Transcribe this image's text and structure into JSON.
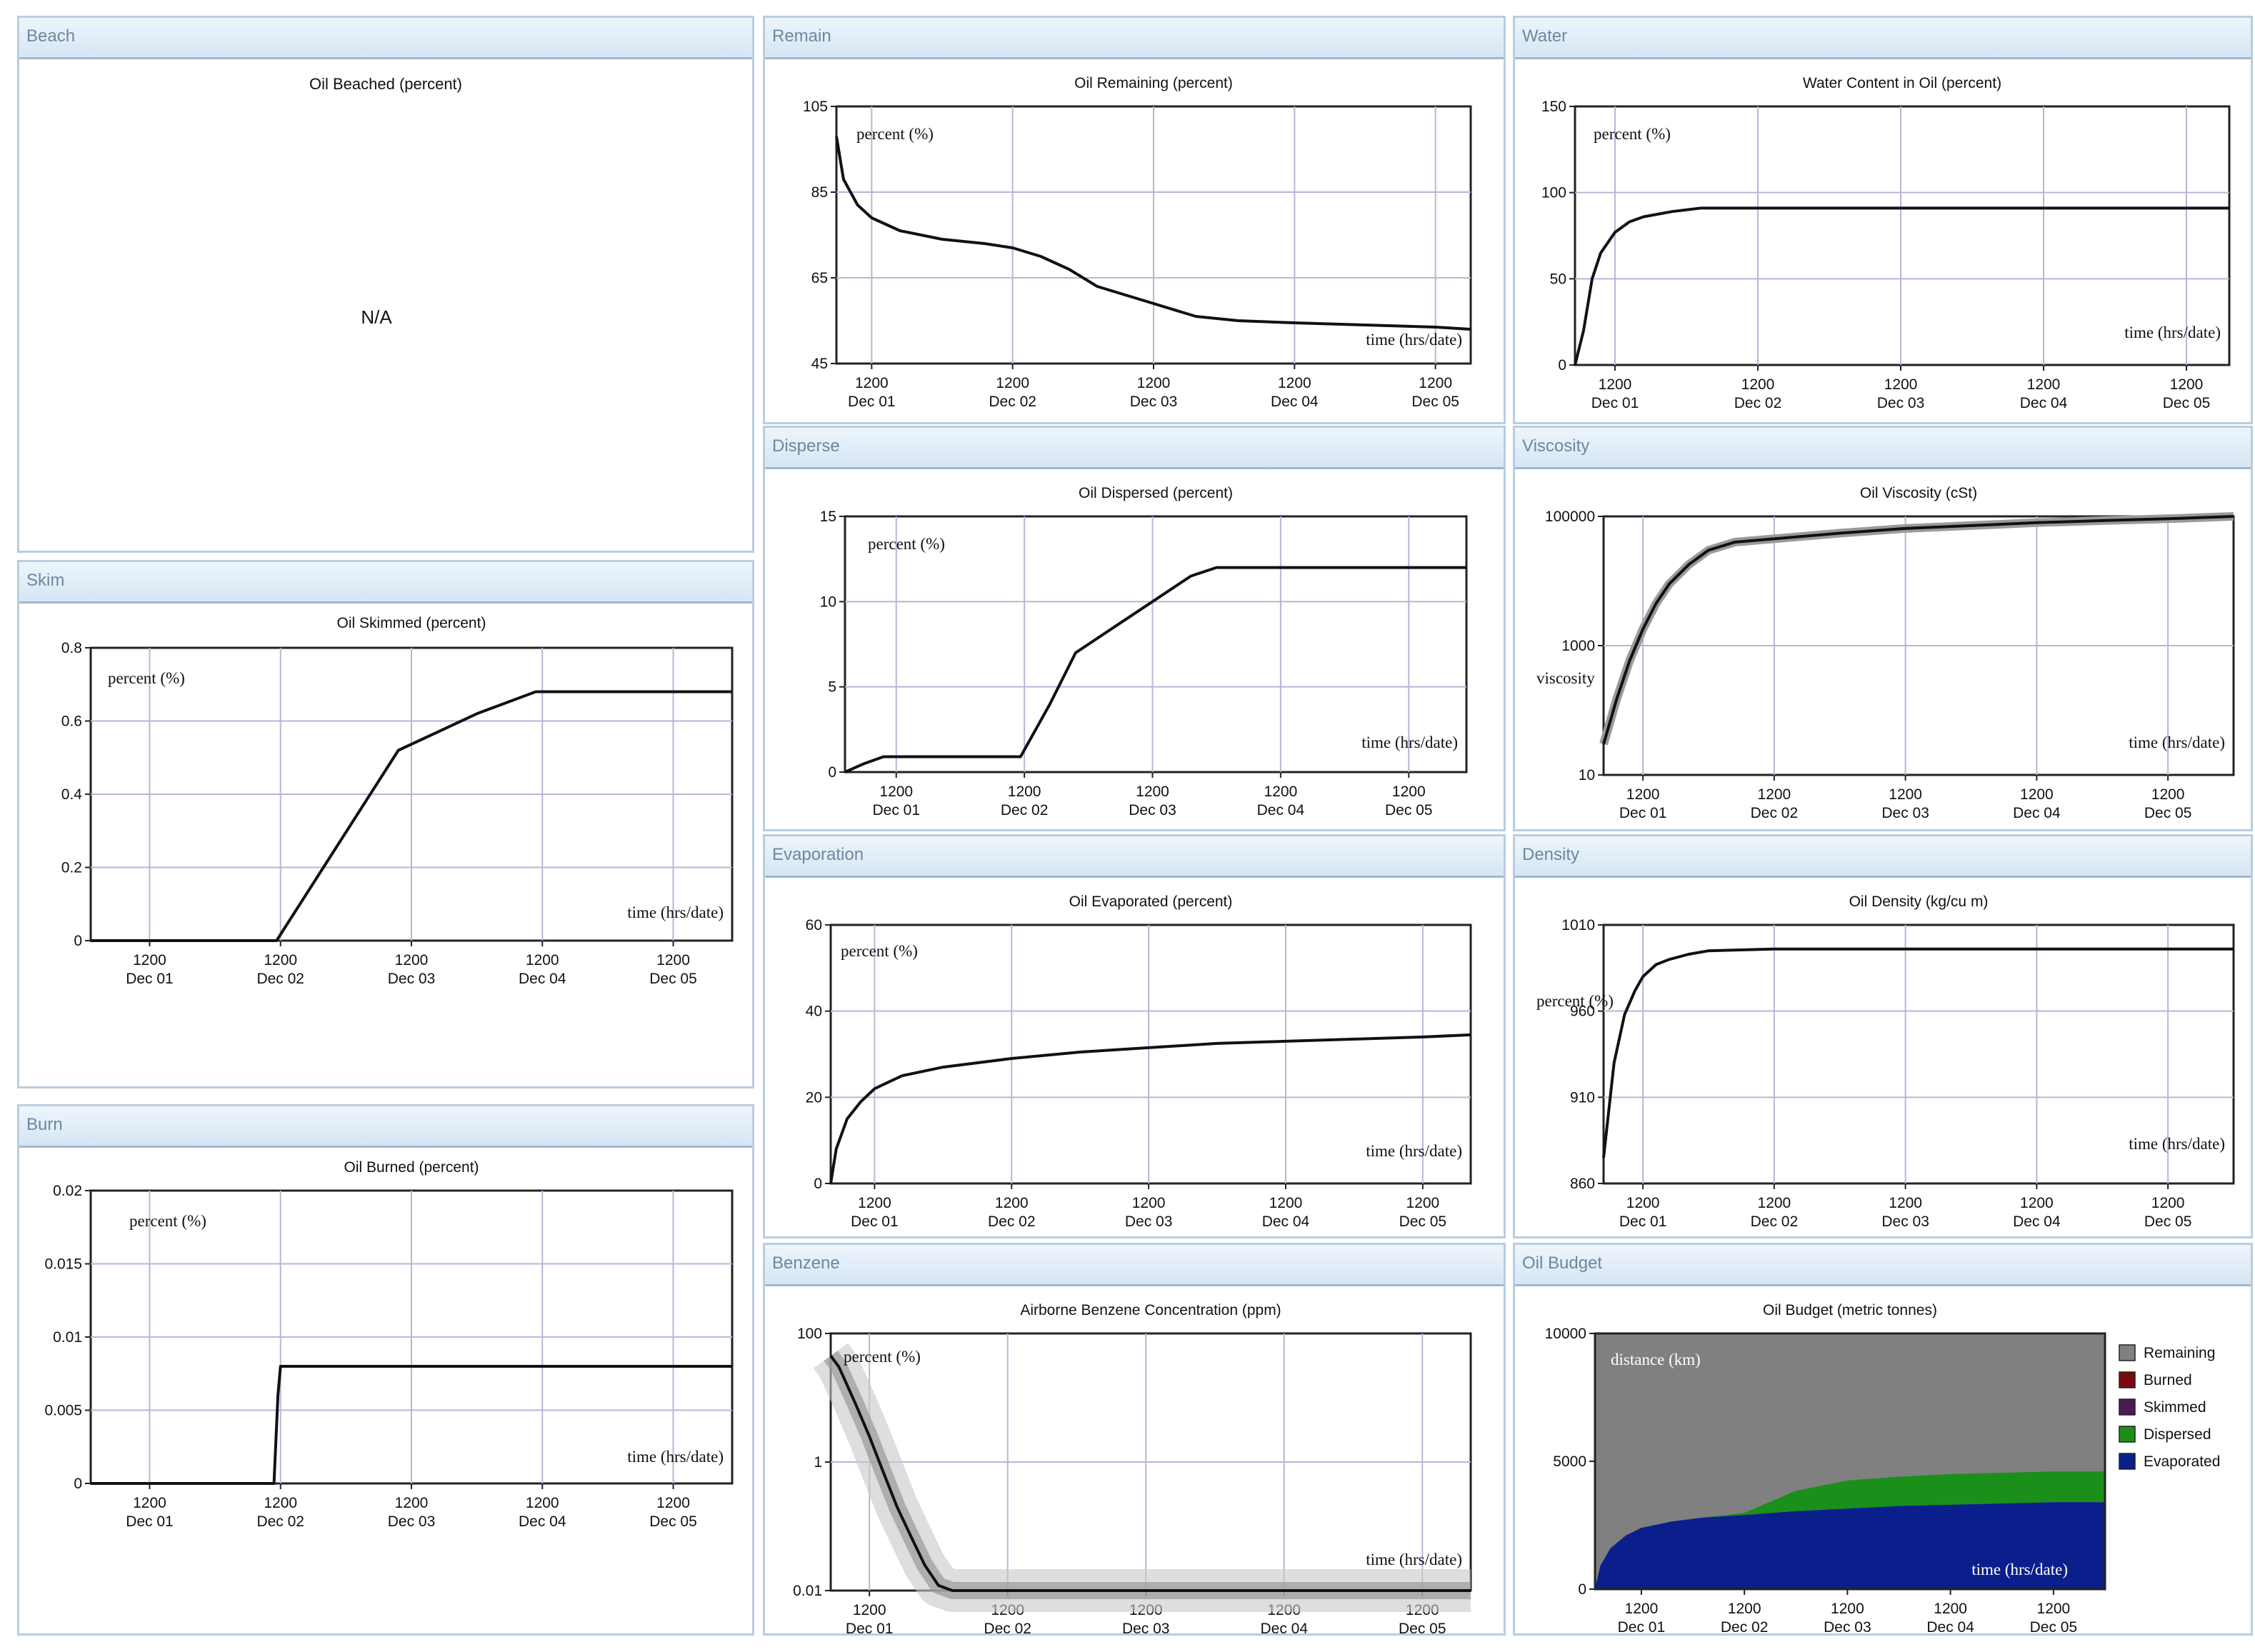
{
  "panels": [
    {
      "id": "beach",
      "header": "Beach",
      "title": "Oil Beached (percent)",
      "na_text": "N/A",
      "chart": null
    },
    {
      "id": "remain",
      "header": "Remain",
      "chart": {
        "type": "line",
        "title": "Oil Remaining (percent)",
        "ylabel": "percent (%)",
        "xlabel": "time (hrs/date)",
        "ylim": [
          45,
          105
        ],
        "yticks": [
          "105",
          "85",
          "65",
          "45"
        ],
        "ytickvals": [
          105,
          85,
          65,
          45
        ],
        "xlim": [
          0.75,
          5.25
        ],
        "series": [
          {
            "x": [
              0.75,
              0.8,
              0.9,
              1.0,
              1.2,
              1.5,
              1.8,
              2.0,
              2.2,
              2.4,
              2.6,
              2.8,
              3.0,
              3.3,
              3.6,
              4.0,
              4.5,
              5.0,
              5.25
            ],
            "values": [
              98,
              88,
              82,
              79,
              76,
              74,
              73,
              72,
              70,
              67,
              63,
              61,
              59,
              56,
              55,
              54.5,
              54,
              53.5,
              53
            ]
          }
        ]
      }
    },
    {
      "id": "water",
      "header": "Water",
      "chart": {
        "type": "line",
        "title": "Water Content in Oil (percent)",
        "ylabel": "percent (%)",
        "xlabel": "time (hrs/date)",
        "ylim": [
          0,
          150
        ],
        "yticks": [
          "150",
          "100",
          "50",
          "0"
        ],
        "ytickvals": [
          150,
          100,
          50,
          0
        ],
        "xlim": [
          0.72,
          5.3
        ],
        "series": [
          {
            "x": [
              0.72,
              0.78,
              0.84,
              0.9,
              1.0,
              1.1,
              1.2,
              1.4,
              1.6,
              2.0,
              3.0,
              4.0,
              5.0,
              5.3
            ],
            "values": [
              0,
              20,
              50,
              65,
              77,
              83,
              86,
              89,
              91,
              91,
              91,
              91,
              91,
              91
            ]
          }
        ]
      }
    },
    {
      "id": "skim",
      "header": "Skim",
      "chart": {
        "type": "line",
        "title": "Oil Skimmed (percent)",
        "ylabel": "percent (%)",
        "xlabel": "time (hrs/date)",
        "ylim": [
          0,
          0.8
        ],
        "yticks": [
          "0.8",
          "0.6",
          "0.4",
          "0.2",
          "0"
        ],
        "ytickvals": [
          0.8,
          0.6,
          0.4,
          0.2,
          0
        ],
        "xlim": [
          0.55,
          5.45
        ],
        "series": [
          {
            "x": [
              0.55,
              1.5,
              1.97,
              2.9,
              3.2,
              3.5,
              3.95,
              5.45
            ],
            "values": [
              0,
              0,
              0,
              0.52,
              0.57,
              0.62,
              0.68,
              0.68
            ]
          }
        ]
      }
    },
    {
      "id": "disperse",
      "header": "Disperse",
      "chart": {
        "type": "line",
        "title": "Oil Dispersed (percent)",
        "ylabel": "percent (%)",
        "xlabel": "time (hrs/date)",
        "ylim": [
          0,
          15
        ],
        "yticks": [
          "15",
          "10",
          "5",
          "0"
        ],
        "ytickvals": [
          15,
          10,
          5,
          0
        ],
        "xlim": [
          0.6,
          5.45
        ],
        "series": [
          {
            "x": [
              0.6,
              0.75,
              0.9,
              1.2,
              1.5,
              1.97,
              2.2,
              2.4,
              2.7,
              3.0,
              3.3,
              3.5,
              4.0,
              5.0,
              5.45
            ],
            "values": [
              0,
              0.5,
              0.9,
              0.9,
              0.9,
              0.9,
              4,
              7,
              8.5,
              10,
              11.5,
              12,
              12,
              12,
              12
            ]
          }
        ]
      }
    },
    {
      "id": "viscosity",
      "header": "Viscosity",
      "chart": {
        "type": "line",
        "title": "Oil Viscosity (cSt)",
        "ylabel": "viscosity",
        "xlabel": "time (hrs/date)",
        "scale": "log",
        "ylim": [
          10,
          100000
        ],
        "yticks": [
          "100000",
          "1000",
          "10"
        ],
        "ytickvals": [
          100000,
          1000,
          10
        ],
        "xlim": [
          0.7,
          5.5
        ],
        "series": [
          {
            "x": [
              0.7,
              0.8,
              0.9,
              1.0,
              1.1,
              1.2,
              1.35,
              1.5,
              1.7,
              2.0,
              2.5,
              3.0,
              3.5,
              4.0,
              4.5,
              5.0,
              5.5
            ],
            "values": [
              30,
              150,
              600,
              1800,
              4500,
              9000,
              18000,
              30000,
              40000,
              45000,
              55000,
              65000,
              72000,
              80000,
              86000,
              92000,
              100000
            ]
          }
        ]
      }
    },
    {
      "id": "burn",
      "header": "Burn",
      "chart": {
        "type": "line",
        "title": "Oil Burned (percent)",
        "ylabel": "percent (%)",
        "xlabel": "time (hrs/date)",
        "ylim": [
          0,
          0.02
        ],
        "yticks": [
          "0.02",
          "0.015",
          "0.01",
          "0.005",
          "0"
        ],
        "ytickvals": [
          0.02,
          0.015,
          0.01,
          0.005,
          0
        ],
        "xlim": [
          0.55,
          5.45
        ],
        "series": [
          {
            "x": [
              0.55,
              1.95,
              1.98,
              2.0,
              5.45
            ],
            "values": [
              0,
              0,
              0.006,
              0.008,
              0.008
            ]
          }
        ]
      }
    },
    {
      "id": "evaporation",
      "header": "Evaporation",
      "chart": {
        "type": "line",
        "title": "Oil Evaporated (percent)",
        "ylabel": "percent (%)",
        "xlabel": "time (hrs/date)",
        "ylim": [
          0,
          60
        ],
        "yticks": [
          "60",
          "40",
          "20",
          "0"
        ],
        "ytickvals": [
          60,
          40,
          20,
          0
        ],
        "xlim": [
          0.68,
          5.35
        ],
        "series": [
          {
            "x": [
              0.68,
              0.72,
              0.8,
              0.9,
              1.0,
              1.2,
              1.5,
              2.0,
              2.5,
              3.0,
              3.5,
              4.0,
              4.5,
              5.0,
              5.35
            ],
            "values": [
              0,
              8,
              15,
              19,
              22,
              25,
              27,
              29,
              30.5,
              31.5,
              32.5,
              33,
              33.5,
              34,
              34.5
            ]
          }
        ]
      }
    },
    {
      "id": "density",
      "header": "Density",
      "chart": {
        "type": "line",
        "title": "Oil Density (kg/cu m)",
        "ylabel": "percent (%)",
        "xlabel": "time (hrs/date)",
        "ylim": [
          860,
          1010
        ],
        "yticks": [
          "1010",
          "960",
          "910",
          "860"
        ],
        "ytickvals": [
          1010,
          960,
          910,
          860
        ],
        "xlim": [
          0.7,
          5.5
        ],
        "series": [
          {
            "x": [
              0.7,
              0.78,
              0.86,
              0.94,
              1.0,
              1.1,
              1.2,
              1.35,
              1.5,
              2.0,
              3.0,
              4.0,
              5.0,
              5.5
            ],
            "values": [
              875,
              930,
              958,
              972,
              980,
              987,
              990,
              993,
              995,
              996,
              996,
              996,
              996,
              996
            ]
          }
        ]
      }
    },
    {
      "id": "benzene",
      "header": "Benzene",
      "chart": {
        "type": "line",
        "title": "Airborne Benzene Concentration (ppm)",
        "ylabel": "percent (%)",
        "xlabel": "time (hrs/date)",
        "scale": "log",
        "ylim": [
          0.01,
          100
        ],
        "yticks": [
          "100",
          "1",
          "0.01"
        ],
        "ytickvals": [
          100,
          1,
          0.01
        ],
        "xlim": [
          0.72,
          5.35
        ],
        "series": [
          {
            "x": [
              0.72,
              0.78,
              0.9,
              1.0,
              1.1,
              1.2,
              1.3,
              1.4,
              1.5,
              1.6,
              1.8,
              2.5,
              3.5,
              4.5,
              5.35
            ],
            "values": [
              45,
              30,
              8,
              2.5,
              0.7,
              0.2,
              0.07,
              0.025,
              0.012,
              0.01,
              0.01,
              0.01,
              0.01,
              0.01,
              0.01
            ]
          }
        ]
      }
    },
    {
      "id": "budget",
      "header": "Oil Budget",
      "chart": {
        "type": "area",
        "title": "Oil Budget (metric tonnes)",
        "ylabel": "distance (km)",
        "xlabel": "time (hrs/date)",
        "ylim": [
          0,
          10000
        ],
        "yticks": [
          "10000",
          "5000",
          "0"
        ],
        "ytickvals": [
          10000,
          5000,
          0
        ],
        "xlim": [
          0.55,
          5.5
        ],
        "total": 10000,
        "x": [
          0.55,
          0.6,
          0.7,
          0.85,
          1.0,
          1.3,
          1.6,
          2.0,
          2.5,
          3.0,
          3.5,
          4.0,
          4.5,
          5.0,
          5.5
        ],
        "evaporated": [
          0,
          900,
          1600,
          2100,
          2400,
          2650,
          2800,
          2900,
          3050,
          3150,
          3250,
          3300,
          3350,
          3400,
          3400
        ],
        "dispersed": [
          0,
          0,
          0,
          0,
          0,
          0,
          0,
          80,
          800,
          1100,
          1150,
          1200,
          1200,
          1200,
          1200
        ],
        "legend": [
          {
            "label": "Remaining",
            "color": "#808080"
          },
          {
            "label": "Burned",
            "color": "#7a0a10"
          },
          {
            "label": "Skimmed",
            "color": "#4b1a52"
          },
          {
            "label": "Dispersed",
            "color": "#1a8f1a"
          },
          {
            "label": "Evaporated",
            "color": "#0a1f8c"
          }
        ]
      }
    }
  ],
  "xaxis": {
    "ticks": [
      1,
      2,
      3,
      4,
      5
    ],
    "tick_top": [
      "1200",
      "1200",
      "1200",
      "1200",
      "1200"
    ],
    "tick_bottom": [
      "Dec 01",
      "Dec 02",
      "Dec 03",
      "Dec 04",
      "Dec 05"
    ]
  }
}
